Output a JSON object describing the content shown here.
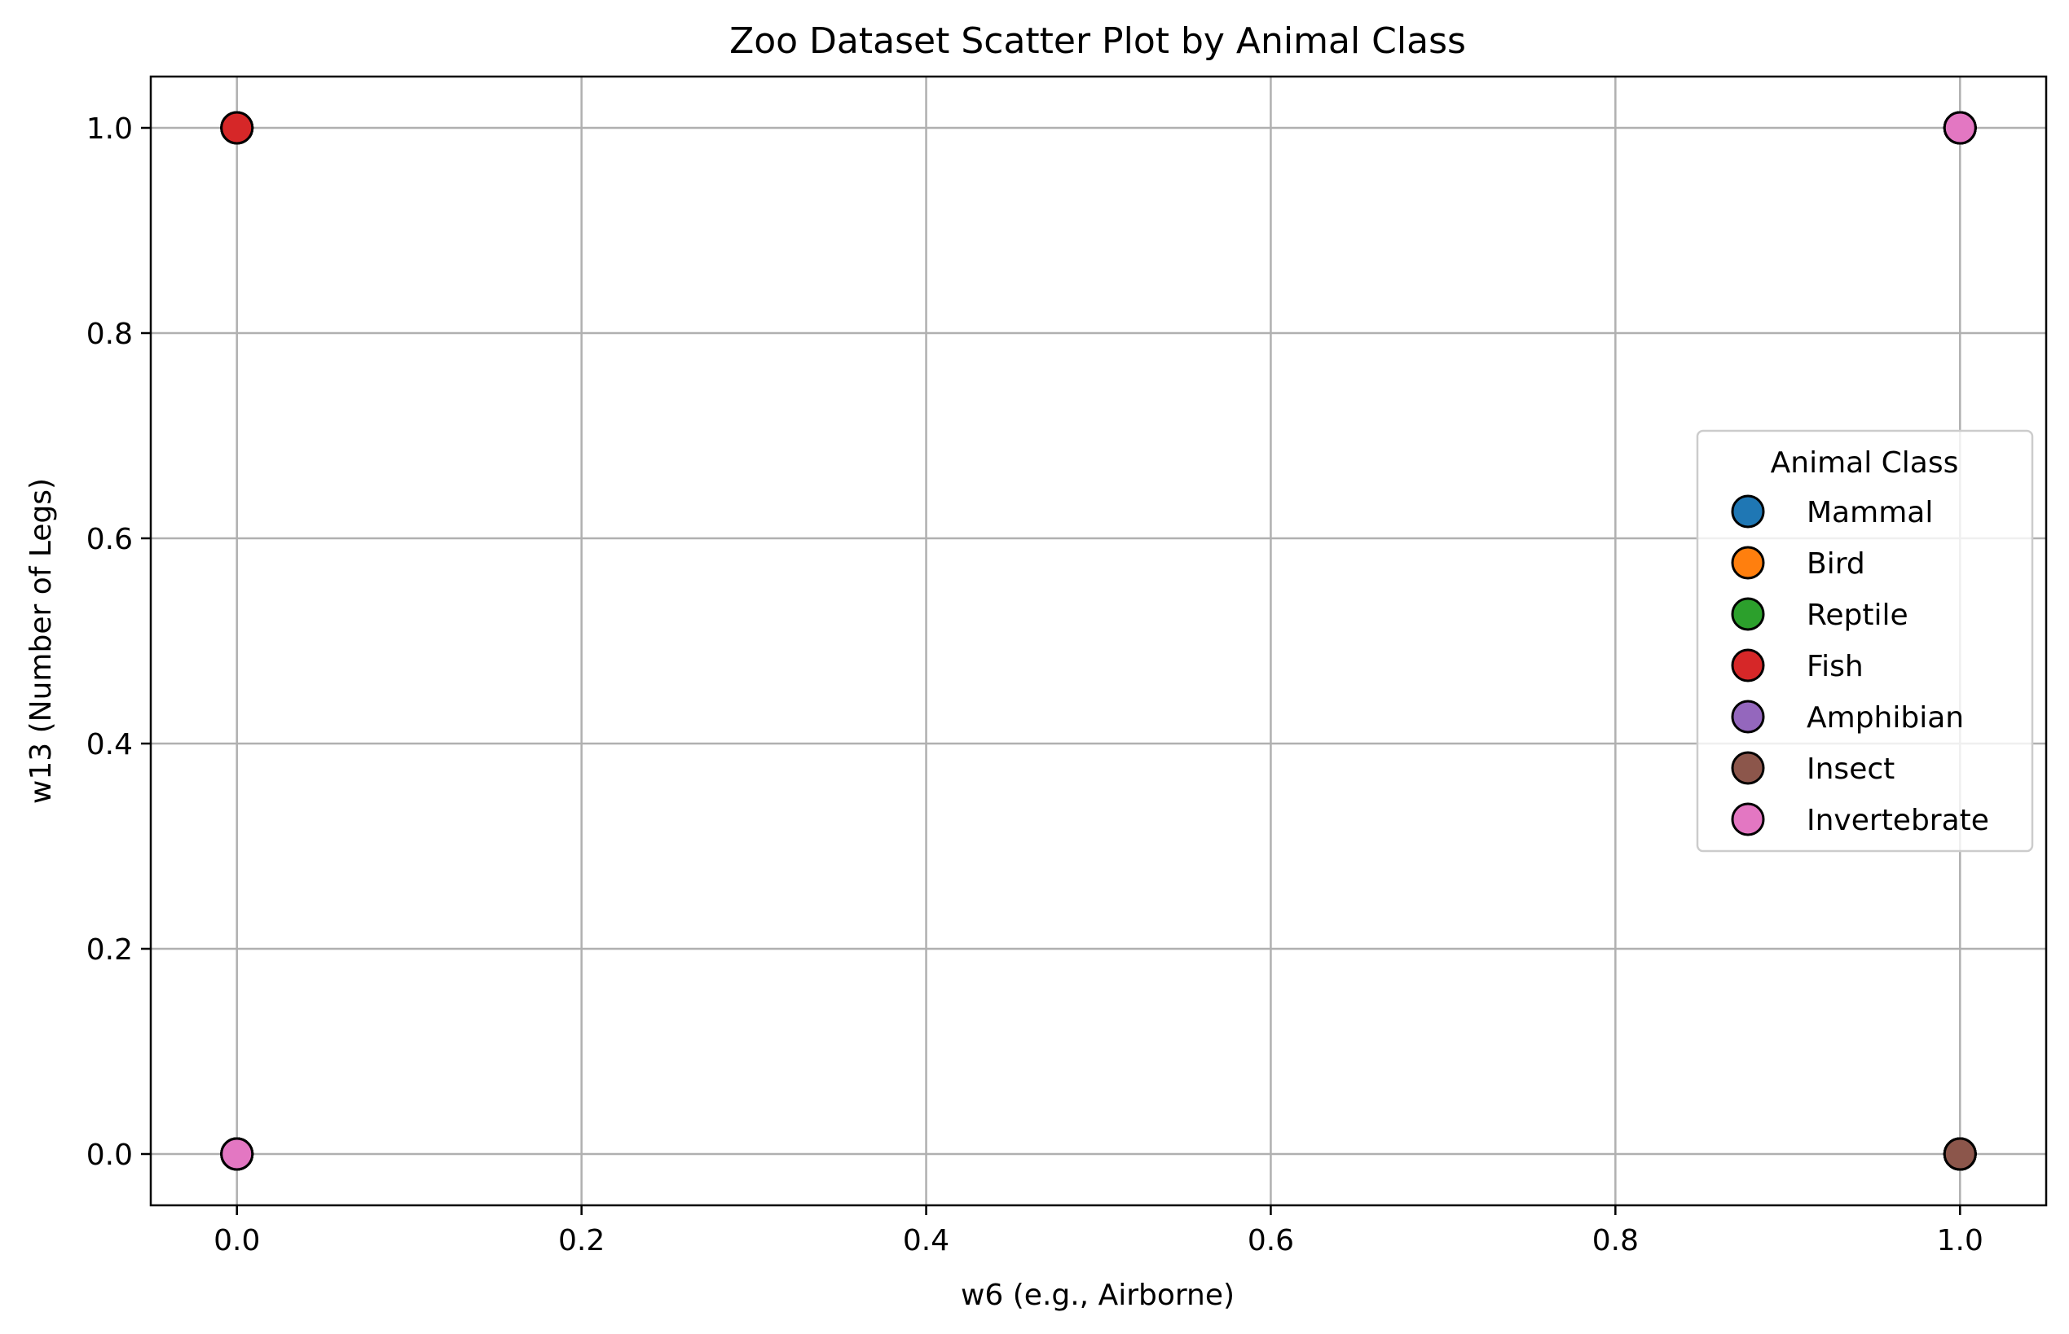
{
  "chart_data": {
    "type": "scatter",
    "title": "Zoo Dataset Scatter Plot by Animal Class",
    "xlabel": "w6 (e.g., Airborne)",
    "ylabel": "w13 (Number of Legs)",
    "xlim": [
      -0.05,
      1.05
    ],
    "ylim": [
      -0.05,
      1.05
    ],
    "xticks": [
      0.0,
      0.2,
      0.4,
      0.6,
      0.8,
      1.0
    ],
    "yticks": [
      0.0,
      0.2,
      0.4,
      0.6,
      0.8,
      1.0
    ],
    "xtick_labels": [
      "0.0",
      "0.2",
      "0.4",
      "0.6",
      "0.8",
      "1.0"
    ],
    "ytick_labels": [
      "0.0",
      "0.2",
      "0.4",
      "0.6",
      "0.8",
      "1.0"
    ],
    "grid": true,
    "legend": {
      "title": "Animal Class",
      "placement": "center-right"
    },
    "series": [
      {
        "name": "Mammal",
        "color": "#1f77b4",
        "points": [
          [
            0,
            0
          ],
          [
            0,
            1
          ],
          [
            1,
            0
          ],
          [
            1,
            1
          ]
        ]
      },
      {
        "name": "Bird",
        "color": "#ff7f0e",
        "points": [
          [
            0,
            0
          ],
          [
            0,
            1
          ],
          [
            1,
            0
          ],
          [
            1,
            1
          ]
        ]
      },
      {
        "name": "Reptile",
        "color": "#2ca02c",
        "points": [
          [
            0,
            0
          ],
          [
            0,
            1
          ],
          [
            1,
            0
          ],
          [
            1,
            1
          ]
        ]
      },
      {
        "name": "Fish",
        "color": "#d62728",
        "points": [
          [
            0,
            0
          ],
          [
            0,
            1
          ],
          [
            1,
            0
          ],
          [
            1,
            1
          ]
        ]
      },
      {
        "name": "Amphibian",
        "color": "#9467bd",
        "points": [
          [
            0,
            0
          ],
          [
            1,
            0
          ],
          [
            1,
            1
          ]
        ]
      },
      {
        "name": "Insect",
        "color": "#8c564b",
        "points": [
          [
            0,
            0
          ],
          [
            1,
            0
          ],
          [
            1,
            1
          ]
        ]
      },
      {
        "name": "Invertebrate",
        "color": "#e377c2",
        "points": [
          [
            0,
            0
          ],
          [
            1,
            1
          ]
        ]
      }
    ]
  }
}
